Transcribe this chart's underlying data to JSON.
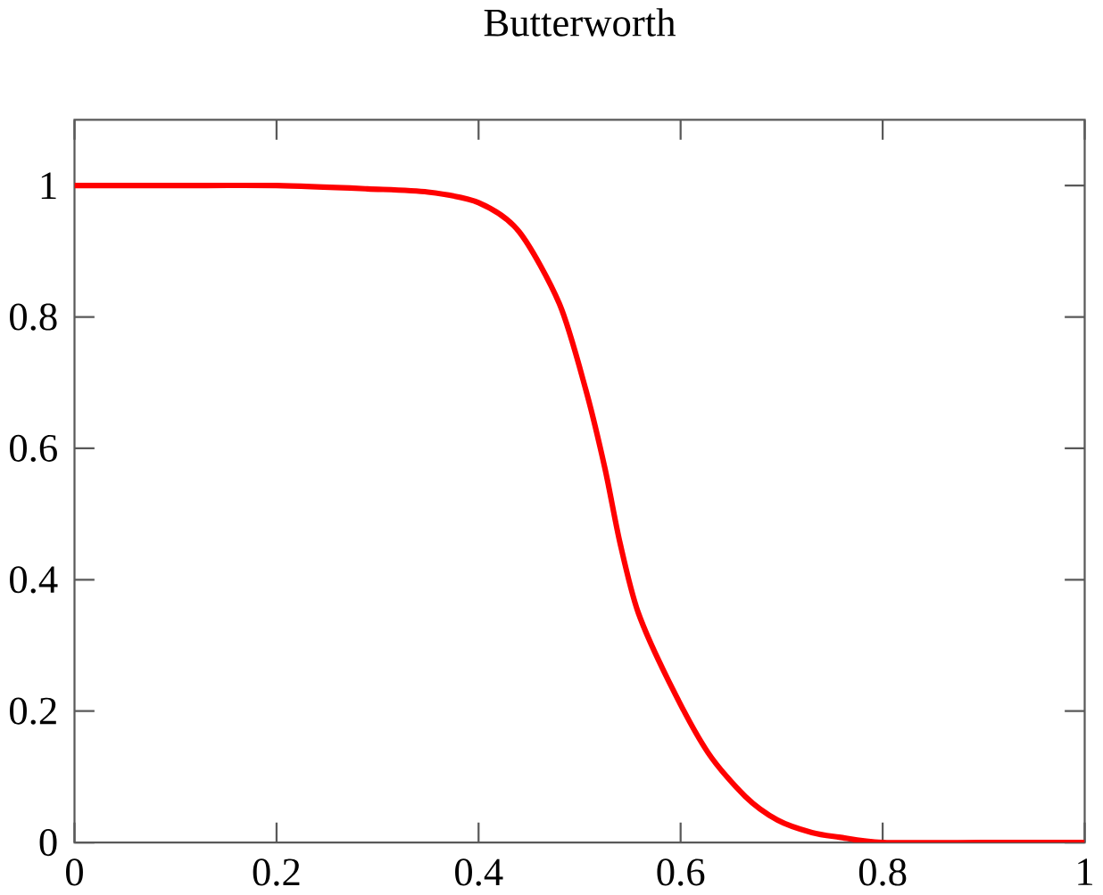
{
  "chart_data": {
    "type": "line",
    "title": "Butterworth",
    "x": [
      0,
      0.1,
      0.2,
      0.29,
      0.35,
      0.4,
      0.44,
      0.48,
      0.506,
      0.525,
      0.54,
      0.558,
      0.59,
      0.627,
      0.664,
      0.696,
      0.73,
      0.757,
      0.8,
      0.9,
      1
    ],
    "series": [
      {
        "color": "#ff0000",
        "values": [
          1,
          1,
          1,
          0.995,
          0.99,
          0.974,
          0.93,
          0.82,
          0.69,
          0.57,
          0.456,
          0.35,
          0.24,
          0.137,
          0.07,
          0.034,
          0.015,
          0.008,
          0,
          0,
          0
        ]
      }
    ],
    "xlim": [
      0,
      1
    ],
    "ylim": [
      0,
      1.1
    ],
    "xticks": [
      0,
      0.2,
      0.4,
      0.6,
      0.8,
      1
    ],
    "yticks": [
      0,
      0.2,
      0.4,
      0.6,
      0.8,
      1
    ],
    "grid": false,
    "marker": "none",
    "line_style": "solid"
  }
}
